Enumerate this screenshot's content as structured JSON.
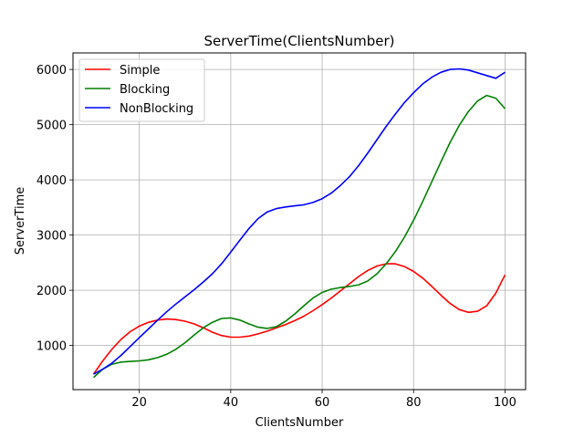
{
  "chart_data": {
    "type": "line",
    "title": "ServerTime(ClientsNumber)",
    "xlabel": "ClientsNumber",
    "ylabel": "ServerTime",
    "xlim": [
      5.5,
      104.5
    ],
    "ylim": [
      200,
      6300
    ],
    "xticks": [
      20,
      40,
      60,
      80,
      100
    ],
    "yticks": [
      1000,
      2000,
      3000,
      4000,
      5000,
      6000
    ],
    "grid": true,
    "legend_position": "upper-left",
    "series": [
      {
        "name": "Simple",
        "color": "#ff0000",
        "x": [
          10,
          12,
          14,
          16,
          18,
          20,
          22,
          24,
          26,
          28,
          30,
          32,
          34,
          36,
          38,
          40,
          42,
          44,
          46,
          48,
          50,
          52,
          54,
          56,
          58,
          60,
          62,
          64,
          66,
          68,
          70,
          72,
          74,
          76,
          78,
          80,
          82,
          84,
          86,
          88,
          90,
          92,
          94,
          96,
          98,
          100
        ],
        "y": [
          480,
          720,
          930,
          1110,
          1250,
          1350,
          1420,
          1460,
          1480,
          1470,
          1440,
          1390,
          1320,
          1240,
          1180,
          1150,
          1150,
          1170,
          1210,
          1260,
          1320,
          1380,
          1450,
          1530,
          1630,
          1740,
          1860,
          1990,
          2120,
          2250,
          2360,
          2440,
          2480,
          2480,
          2430,
          2340,
          2220,
          2070,
          1910,
          1760,
          1650,
          1600,
          1620,
          1720,
          1950,
          2280
        ]
      },
      {
        "name": "Blocking",
        "color": "#008000",
        "x": [
          10,
          12,
          14,
          16,
          18,
          20,
          22,
          24,
          26,
          28,
          30,
          32,
          34,
          36,
          38,
          40,
          42,
          44,
          46,
          48,
          50,
          52,
          54,
          56,
          58,
          60,
          62,
          64,
          66,
          68,
          70,
          72,
          74,
          76,
          78,
          80,
          82,
          84,
          86,
          88,
          90,
          92,
          94,
          96,
          98,
          100
        ],
        "y": [
          420,
          570,
          660,
          700,
          710,
          720,
          740,
          780,
          840,
          930,
          1050,
          1190,
          1320,
          1420,
          1490,
          1500,
          1460,
          1390,
          1330,
          1310,
          1340,
          1440,
          1570,
          1720,
          1860,
          1960,
          2020,
          2050,
          2070,
          2100,
          2170,
          2300,
          2480,
          2700,
          2960,
          3270,
          3610,
          3970,
          4330,
          4680,
          4990,
          5240,
          5430,
          5530,
          5480,
          5290
        ]
      },
      {
        "name": "NonBlocking",
        "color": "#0000ff",
        "x": [
          10,
          12,
          14,
          16,
          18,
          20,
          22,
          24,
          26,
          28,
          30,
          32,
          34,
          36,
          38,
          40,
          42,
          44,
          46,
          48,
          50,
          52,
          54,
          56,
          58,
          60,
          62,
          64,
          66,
          68,
          70,
          72,
          74,
          76,
          78,
          80,
          82,
          84,
          86,
          88,
          90,
          92,
          94,
          96,
          98,
          100
        ],
        "y": [
          480,
          570,
          680,
          820,
          980,
          1140,
          1300,
          1460,
          1610,
          1750,
          1880,
          2010,
          2150,
          2300,
          2480,
          2690,
          2910,
          3120,
          3300,
          3420,
          3480,
          3510,
          3530,
          3550,
          3590,
          3660,
          3760,
          3900,
          4060,
          4260,
          4490,
          4730,
          4970,
          5190,
          5400,
          5580,
          5740,
          5860,
          5950,
          6000,
          6010,
          5990,
          5940,
          5890,
          5840,
          5950
        ]
      }
    ]
  }
}
